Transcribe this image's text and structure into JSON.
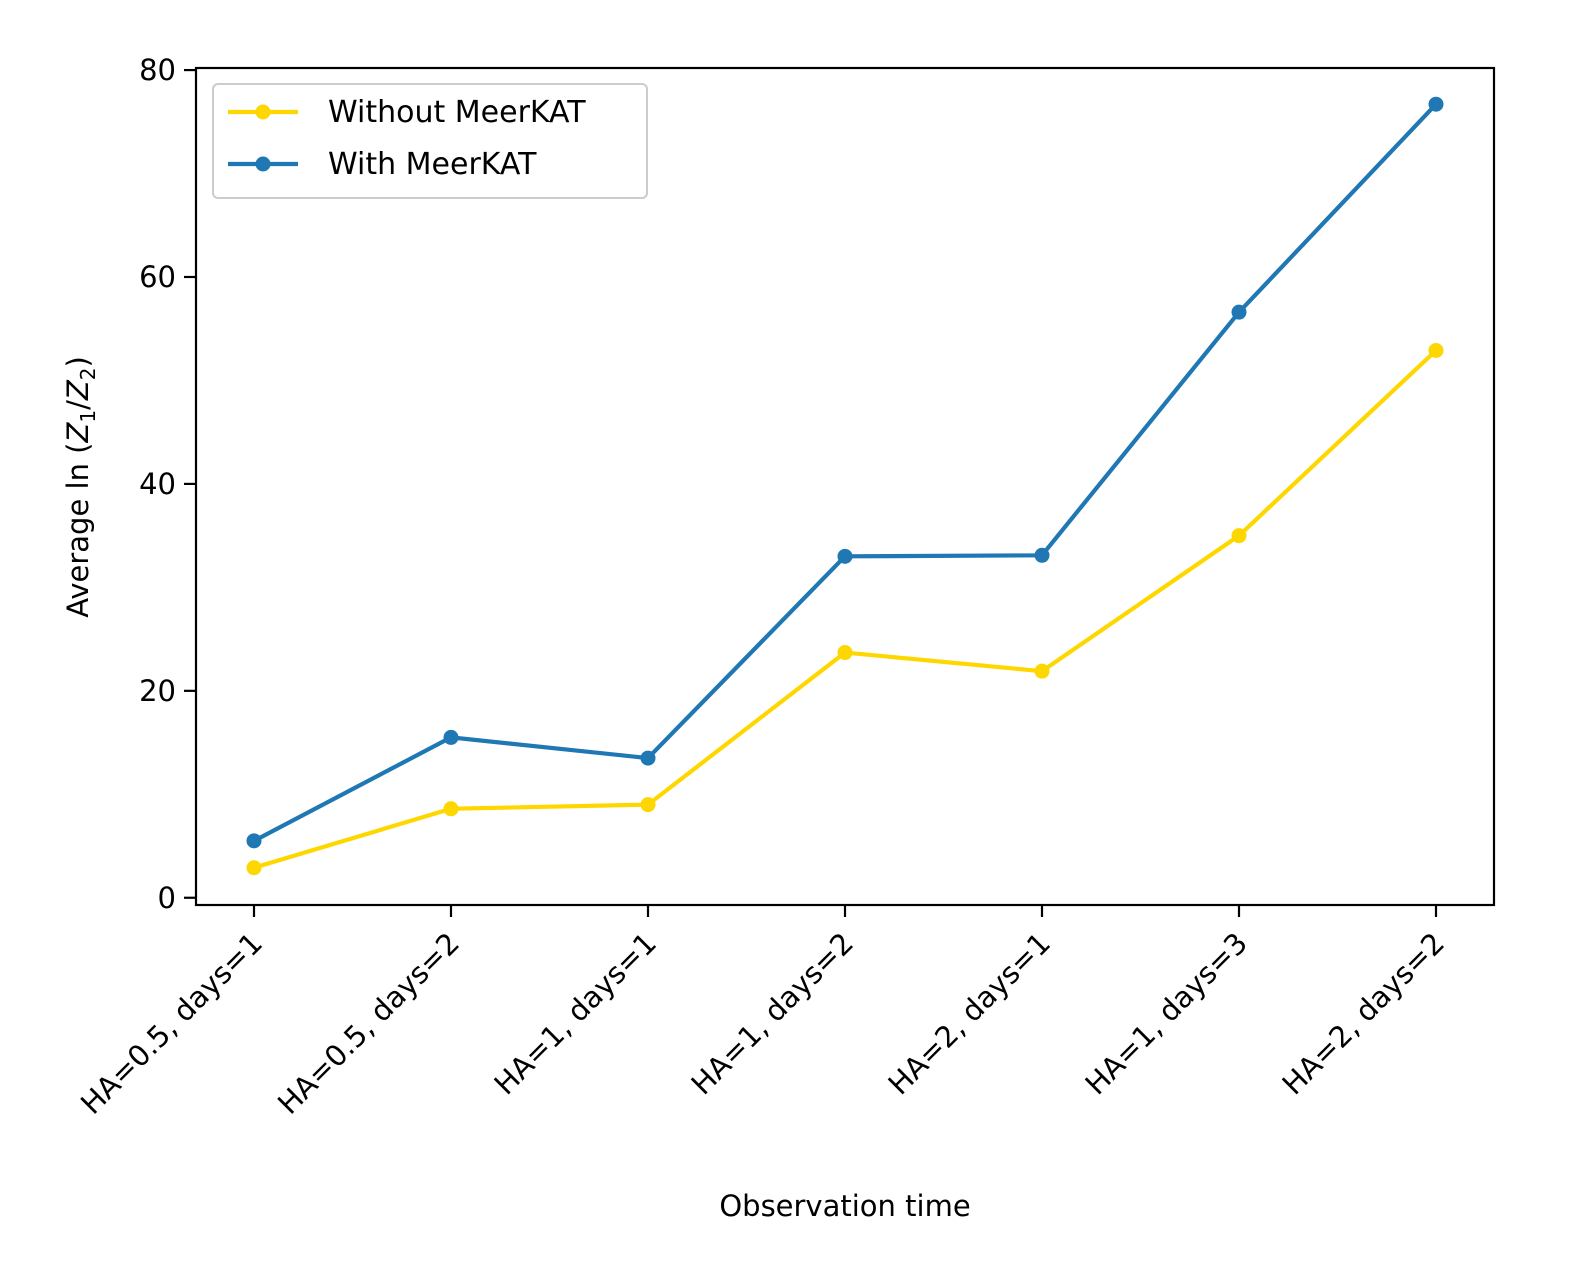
{
  "chart_data": {
    "type": "line",
    "title": "",
    "xlabel": "Observation time",
    "ylabel": {
      "prefix": "Average ln (",
      "z1": "Z",
      "sub1": "1",
      "slash": "/",
      "z2": "Z",
      "sub2": "2",
      "suffix": ")"
    },
    "categories": [
      "HA=0.5, days=1",
      "HA=0.5, days=2",
      "HA=1, days=1",
      "HA=1, days=2",
      "HA=2, days=1",
      "HA=1, days=3",
      "HA=2, days=2"
    ],
    "ylim": [
      -0.7,
      80.2
    ],
    "yticks": [
      0,
      20,
      40,
      60,
      80
    ],
    "grid": false,
    "legend_position": "top-left",
    "series": [
      {
        "name": "Without MeerKAT",
        "color": "#FFD700",
        "values": [
          2.9,
          8.6,
          9.0,
          23.7,
          21.9,
          35.0,
          52.9
        ]
      },
      {
        "name": "With MeerKAT",
        "color": "#1F77B4",
        "values": [
          5.5,
          15.5,
          13.5,
          33.0,
          33.1,
          56.6,
          76.7
        ]
      }
    ]
  }
}
